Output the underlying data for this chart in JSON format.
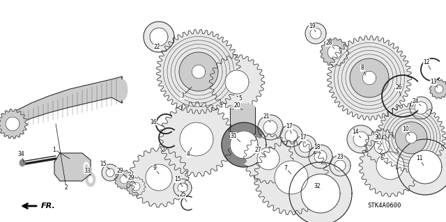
{
  "background_color": "#ffffff",
  "diagram_code": "STK4A0600",
  "fr_arrow_label": "FR.",
  "line_color": "#222222",
  "fill_light": "#e8e8e8",
  "fill_mid": "#cccccc",
  "fill_dark": "#888888"
}
